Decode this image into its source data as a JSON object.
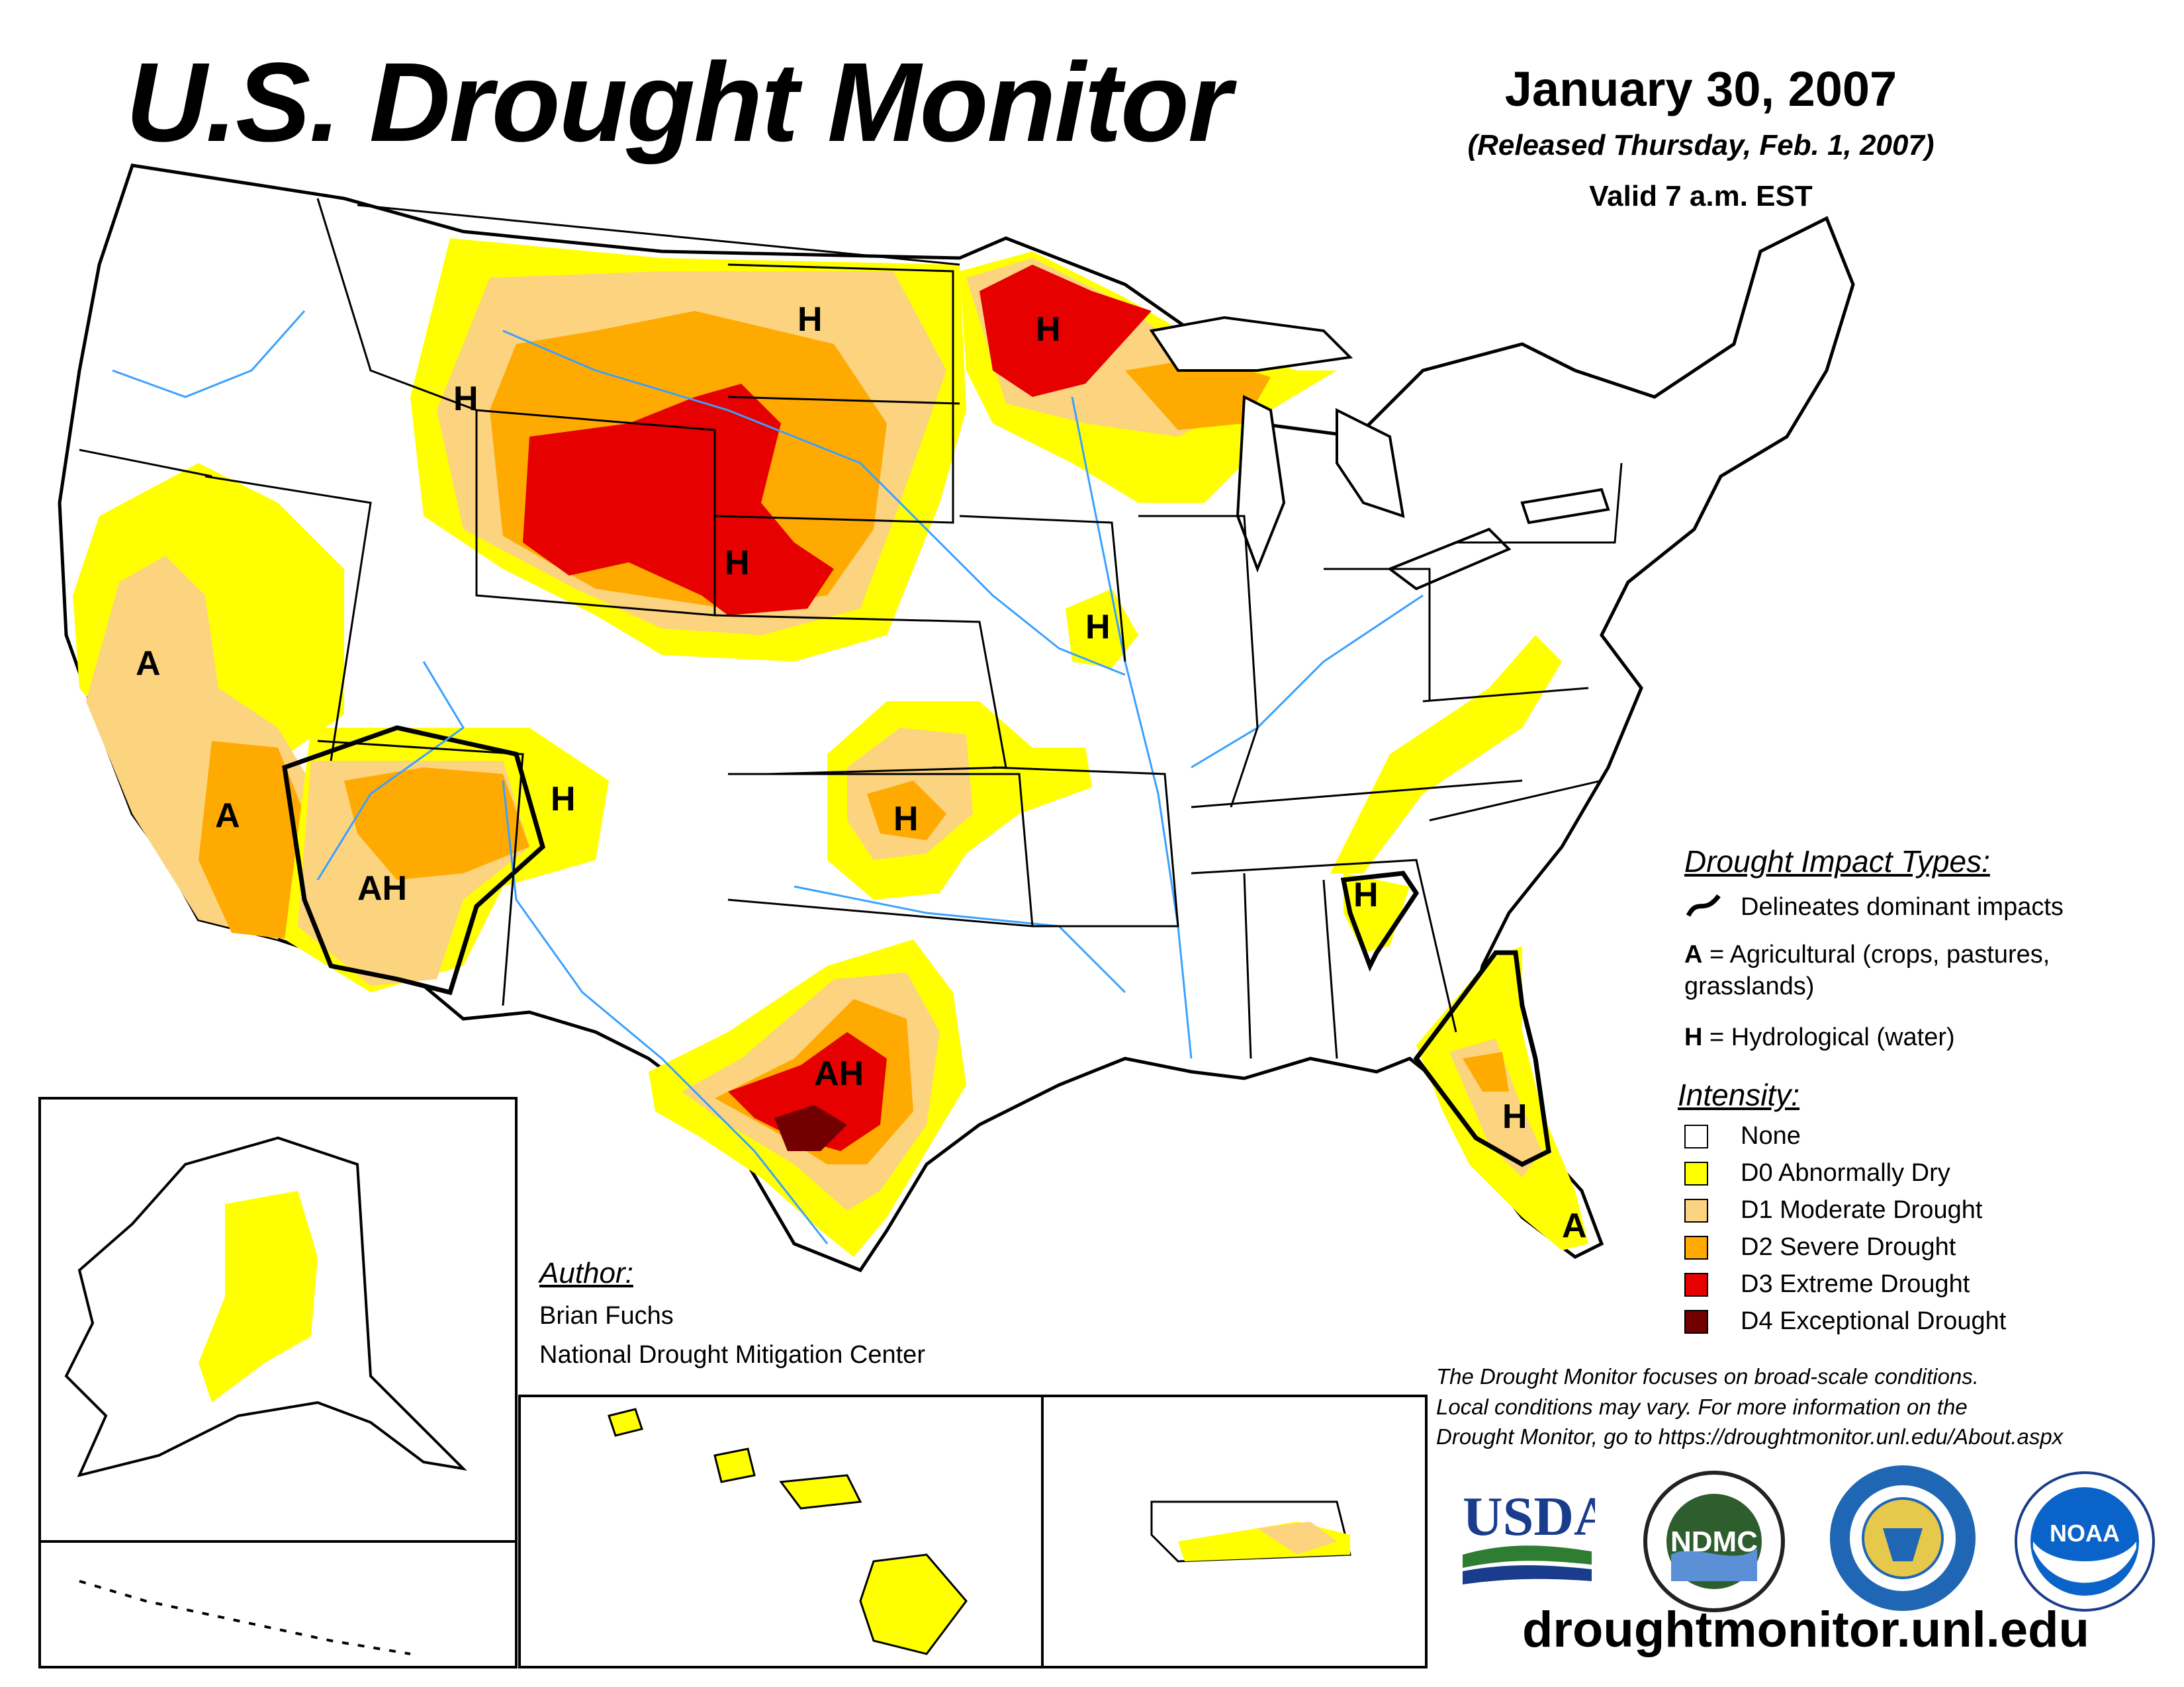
{
  "header": {
    "title": "U.S. Drought Monitor",
    "date": "January 30, 2007",
    "released": "(Released Thursday, Feb. 1, 2007)",
    "valid": "Valid 7 a.m. EST"
  },
  "legend": {
    "impact_heading": "Drought Impact Types:",
    "delineates": "Delineates dominant impacts",
    "agricultural_key": "A",
    "agricultural_text": "= Agricultural (crops, pastures,",
    "agricultural_text2": "grasslands)",
    "hydrological_key": "H",
    "hydrological_text": "= Hydrological (water)",
    "intensity_heading": "Intensity:",
    "categories": [
      {
        "label": "None",
        "color": "#ffffff"
      },
      {
        "label": "D0 Abnormally Dry",
        "color": "#ffff00"
      },
      {
        "label": "D1 Moderate Drought",
        "color": "#fcd37f"
      },
      {
        "label": "D2 Severe Drought",
        "color": "#ffaa00"
      },
      {
        "label": "D3 Extreme Drought",
        "color": "#e60000"
      },
      {
        "label": "D4 Exceptional Drought",
        "color": "#730000"
      }
    ]
  },
  "author": {
    "heading": "Author:",
    "name": "Brian Fuchs",
    "org": "National Drought Mitigation Center"
  },
  "disclaimer": [
    "The Drought Monitor focuses on broad-scale conditions.",
    "Local conditions may vary. For more information on the",
    "Drought Monitor, go to https://droughtmonitor.unl.edu/About.aspx"
  ],
  "map_labels": {
    "h": "H",
    "a": "A",
    "ah": "AH"
  },
  "logos": {
    "usda": "USDA",
    "ndmc": "NDMC",
    "noaa": "NOAA"
  },
  "url": "droughtmonitor.unl.edu"
}
